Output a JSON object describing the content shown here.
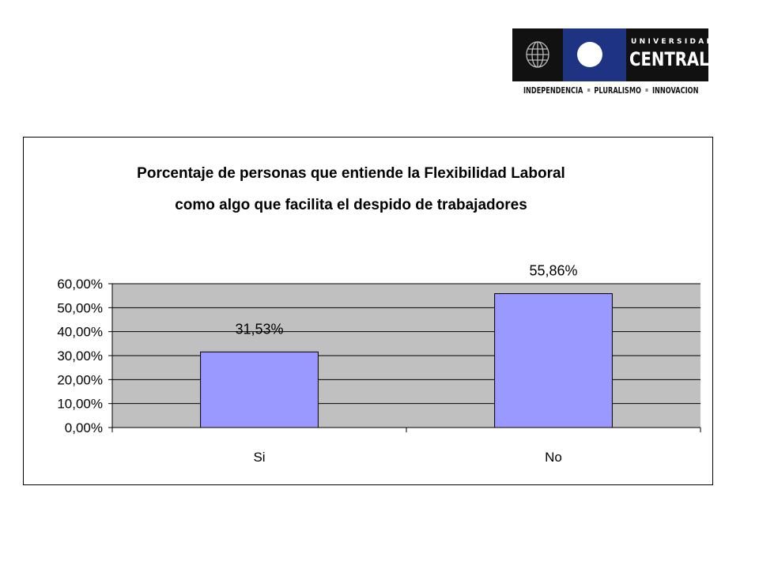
{
  "logo": {
    "line1": "UNIVERSIDAD",
    "line2": "CENTRAL",
    "tagline": [
      "INDEPENDENCIA",
      "PLURALISMO",
      "INNOVACION"
    ]
  },
  "chart_data": {
    "type": "bar",
    "title": [
      "Porcentaje de personas que entiende la Flexibilidad Laboral",
      "como algo que facilita el despido de trabajadores"
    ],
    "categories": [
      "Si",
      "No"
    ],
    "values": [
      31.53,
      55.86
    ],
    "data_labels": [
      "31,53%",
      "55,86%"
    ],
    "ylim": [
      0,
      60
    ],
    "yticks": [
      "0,00%",
      "10,00%",
      "20,00%",
      "30,00%",
      "40,00%",
      "50,00%",
      "60,00%"
    ],
    "grid": true,
    "plot_background": "#c0c0c0",
    "bar_color": "#9999ff",
    "xlabel": "",
    "ylabel": ""
  }
}
